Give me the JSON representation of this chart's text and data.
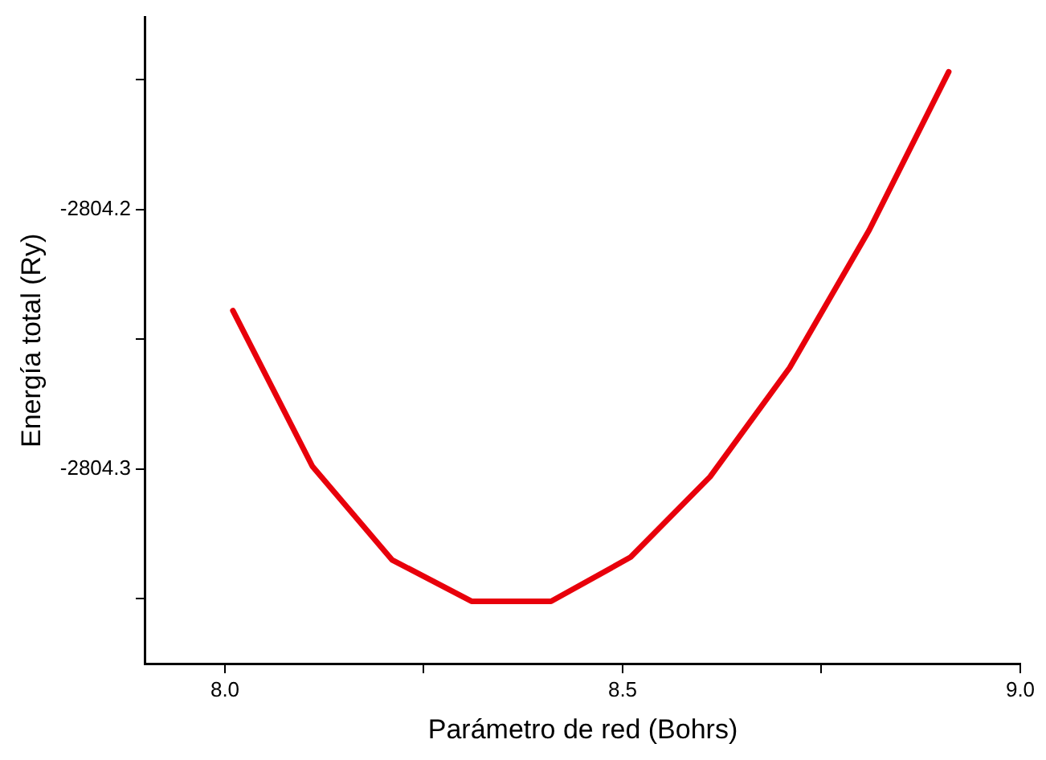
{
  "chart_data": {
    "type": "line",
    "xlabel": "Parámetro de red (Bohrs)",
    "ylabel": "Energía total (Ry)",
    "x": [
      8.01,
      8.11,
      8.21,
      8.31,
      8.41,
      8.51,
      8.61,
      8.71,
      8.81,
      8.91
    ],
    "series": [
      {
        "color": "#e8000b",
        "values": [
          -2804.239,
          -2804.299,
          -2804.335,
          -2804.351,
          -2804.351,
          -2804.334,
          -2804.303,
          -2804.261,
          -2804.208,
          -2804.147
        ]
      }
    ],
    "xlim": [
      7.9,
      9.0
    ],
    "xticks": [
      {
        "value": 8,
        "label": "8.0"
      },
      {
        "value": 8.25,
        "label": null
      },
      8.5,
      {
        "value": 8.75,
        "label": null
      },
      {
        "value": 9,
        "label": "9.0"
      }
    ],
    "ylim": [
      -2804.375,
      -2804.126
    ],
    "yticks": [
      {
        "value": -2804.35,
        "label": null
      },
      -2804.3,
      {
        "value": -2804.25,
        "label": null
      },
      -2804.2,
      {
        "value": -2804.15,
        "label": null
      }
    ],
    "grid": false,
    "legend": false,
    "marker": "none",
    "line_style": "solid"
  }
}
